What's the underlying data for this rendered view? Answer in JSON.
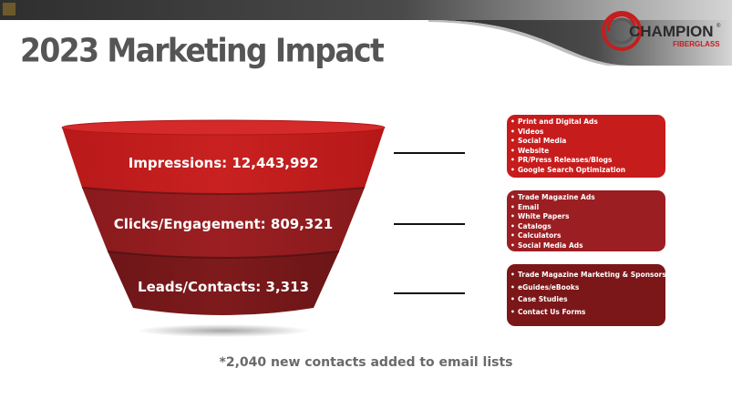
{
  "slide": {
    "title": "2023 Marketing Impact",
    "logo": {
      "line1": "CHAMPION",
      "line2": "FIBERGLASS",
      "registered": "®"
    }
  },
  "funnel": {
    "stages": [
      {
        "label": "Impressions: 12,443,992",
        "color": "#c41e1e",
        "channels": [
          "Print and Digital Ads",
          "Videos",
          "Social Media",
          "Website",
          "PR/Press Releases/Blogs",
          "Google Search Optimization"
        ]
      },
      {
        "label": "Clicks/Engagement: 809,321",
        "color": "#951d21",
        "channels": [
          "Trade Magazine Ads",
          "Email",
          "White Papers",
          "Catalogs",
          "Calculators",
          "Social Media Ads"
        ]
      },
      {
        "label": "Leads/Contacts: 3,313",
        "color": "#7a1a1c",
        "channels": [
          "Trade Magazine Marketing & Sponsorships",
          "eGuides/eBooks",
          "Case Studies",
          "Contact Us Forms"
        ]
      }
    ]
  },
  "footnote": "*2,040 new contacts added to email lists",
  "colors": {
    "accent_red": "#c41e1e",
    "header_dark": "#3a3a3a",
    "title_gray": "#555555"
  }
}
